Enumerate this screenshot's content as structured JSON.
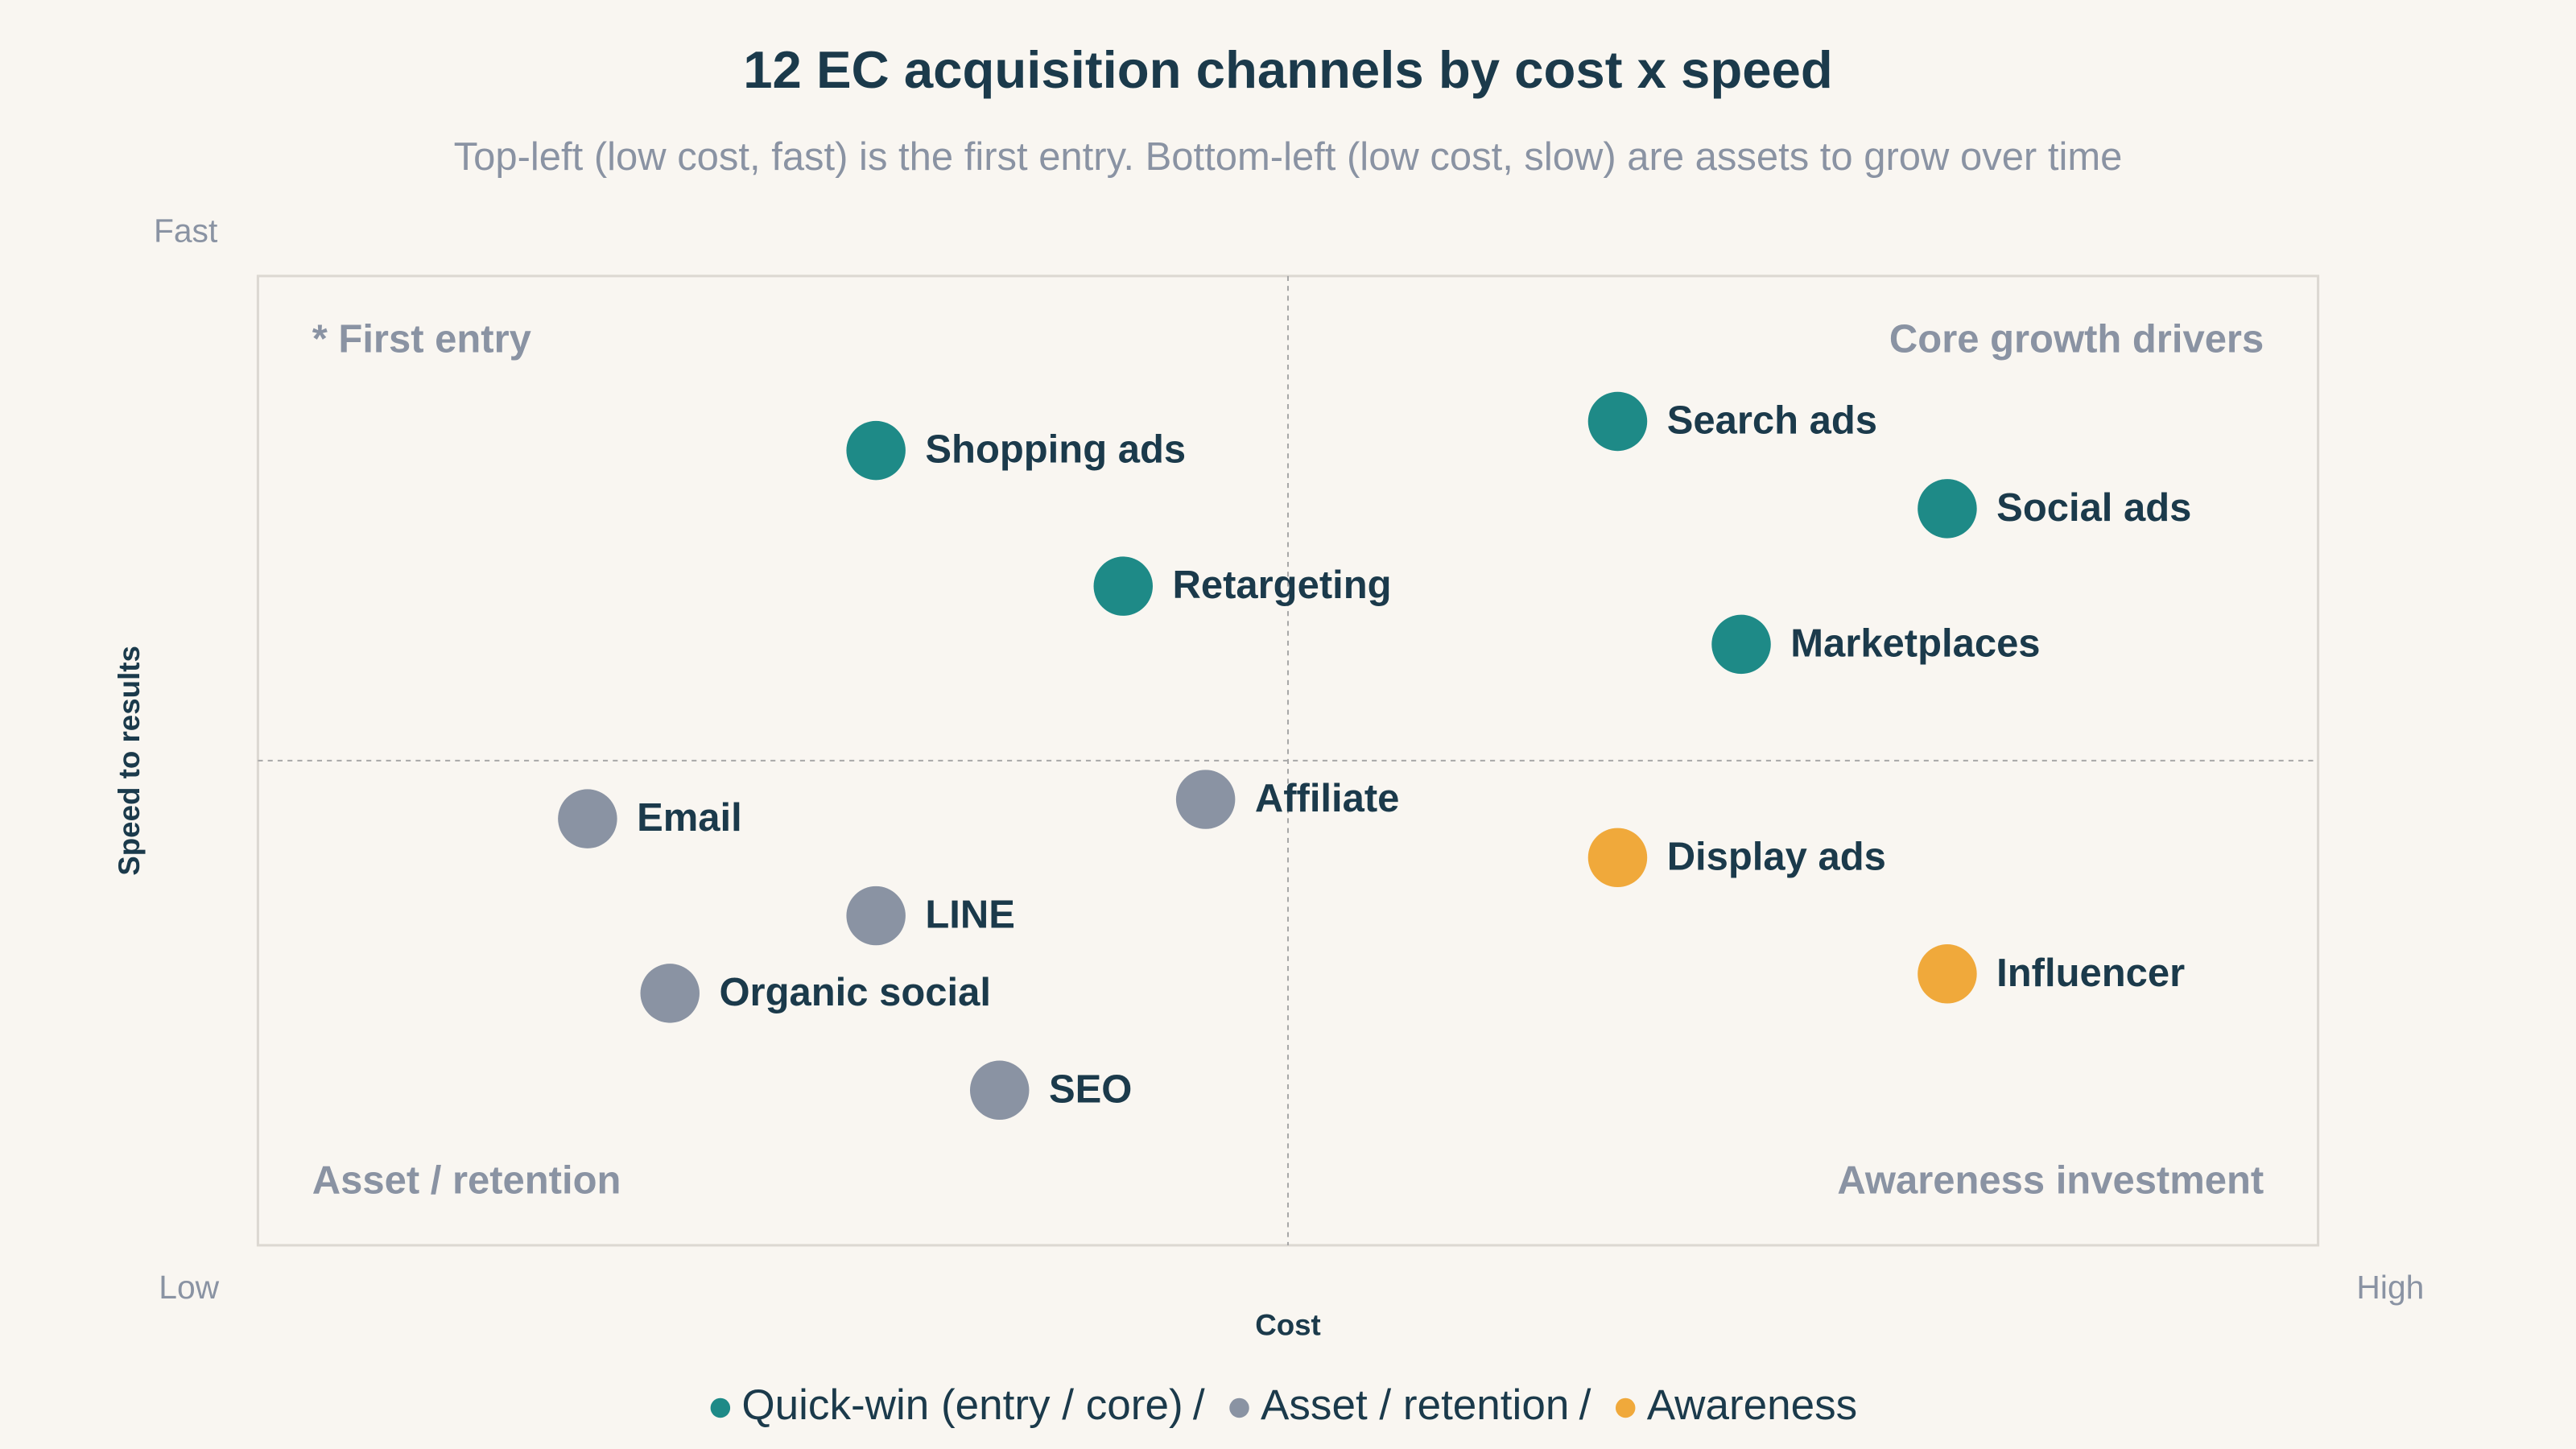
{
  "chart_data": {
    "type": "scatter",
    "title": "12 EC acquisition channels by cost x speed",
    "subtitle": "Top-left (low cost, fast) is the first entry. Bottom-left (low cost, slow) are assets to grow over time",
    "x_label": "Cost",
    "y_label": "Speed to results",
    "x_low_label": "Low",
    "x_high_label": "High",
    "y_high_label": "Fast",
    "quadrant_labels": {
      "top_left": "* First entry",
      "top_right": "Core growth drivers",
      "bottom_left": "Asset / retention",
      "bottom_right": "Awareness investment"
    },
    "xlim": [
      0,
      10
    ],
    "ylim": [
      0,
      10
    ],
    "legend_separator": "/",
    "series": [
      {
        "name": "Quick-win (entry / core)",
        "color": "#1e8a87",
        "labels": [
          "Shopping ads",
          "Retargeting",
          "Search ads",
          "Social ads",
          "Marketplaces"
        ],
        "x": [
          3.0,
          4.2,
          6.6,
          8.2,
          7.2
        ],
        "values": [
          8.2,
          6.8,
          8.5,
          7.6,
          6.2
        ]
      },
      {
        "name": "Asset / retention",
        "color": "#8a93a3",
        "labels": [
          "Email",
          "Affiliate",
          "LINE",
          "Organic social",
          "SEO"
        ],
        "x": [
          1.6,
          4.6,
          3.0,
          2.0,
          3.6
        ],
        "values": [
          4.4,
          4.6,
          3.4,
          2.6,
          1.6
        ]
      },
      {
        "name": "Awareness",
        "color": "#f0a93b",
        "labels": [
          "Display ads",
          "Influencer"
        ],
        "x": [
          6.6,
          8.2
        ],
        "values": [
          4.0,
          2.8
        ]
      }
    ]
  }
}
